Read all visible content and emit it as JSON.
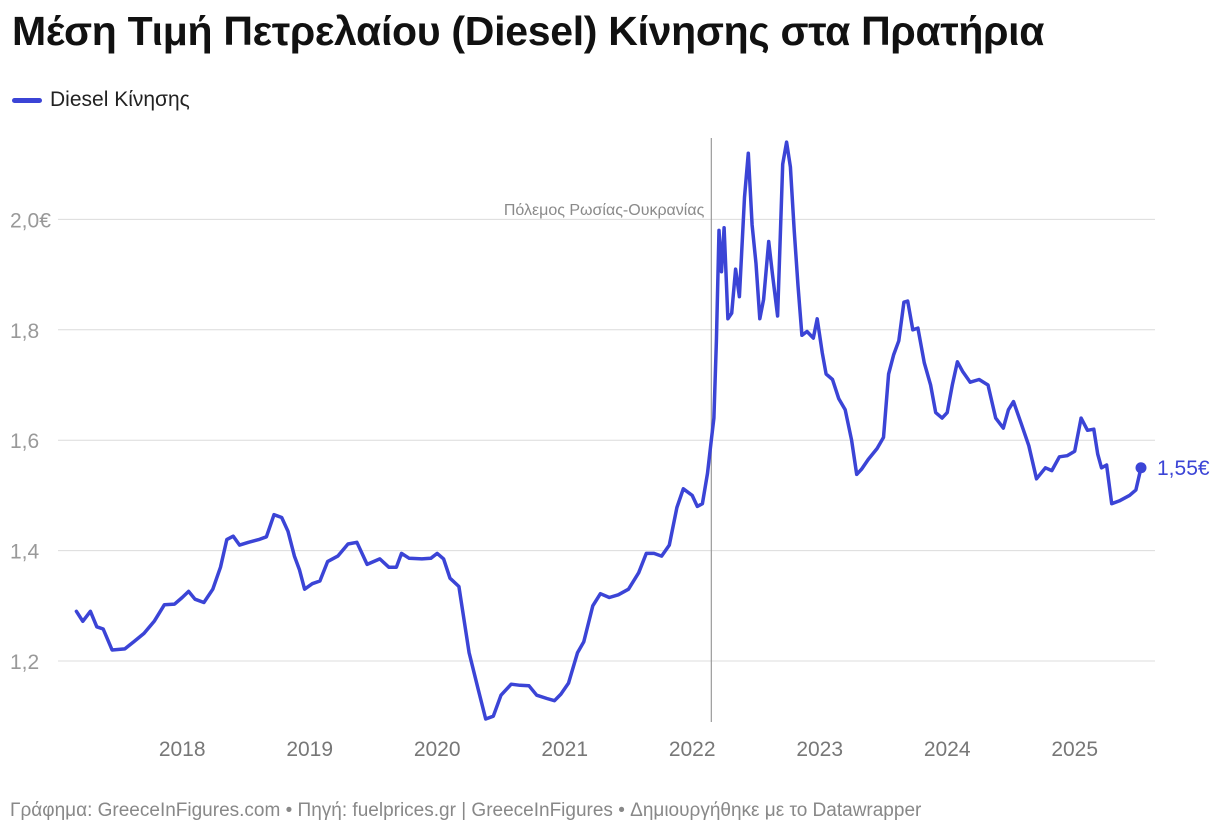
{
  "title": "Μέση Τιμή Πετρελαίου (Diesel) Κίνησης στα Πρατήρια",
  "source": "Γράφημα: GreeceInFigures.com • Πηγή: fuelprices.gr | GreeceInFigures • Δημιουργήθηκε με το Datawrapper",
  "colors": {
    "line": "#3b44d6",
    "grid": "#dcdcdc",
    "axis_text": "#999999",
    "annotation": "#8a8a8a"
  },
  "chart_data": {
    "type": "line",
    "title": "Μέση Τιμή Πετρελαίου (Diesel) Κίνησης στα Πρατήρια",
    "xlabel": "",
    "ylabel": "",
    "x_ticks": [
      "2018",
      "2019",
      "2020",
      "2021",
      "2022",
      "2023",
      "2024",
      "2025"
    ],
    "y_ticks": [
      {
        "value": 1.2,
        "label": "1,2"
      },
      {
        "value": 1.4,
        "label": "1,4"
      },
      {
        "value": 1.6,
        "label": "1,6"
      },
      {
        "value": 1.8,
        "label": "1,8"
      },
      {
        "value": 2.0,
        "label": "2,0€"
      }
    ],
    "ylim": [
      1.09,
      2.15
    ],
    "xlim": [
      2017.2,
      2025.6
    ],
    "grid": true,
    "legend_position": "top-left",
    "annotation": {
      "x": 2022.15,
      "label": "Πόλεμος Ρωσίας-Ουκρανίας"
    },
    "end_label": "1,55€",
    "series": [
      {
        "name": "Diesel Κίνησης",
        "points": [
          [
            2017.17,
            1.29
          ],
          [
            2017.22,
            1.272
          ],
          [
            2017.28,
            1.29
          ],
          [
            2017.33,
            1.262
          ],
          [
            2017.38,
            1.258
          ],
          [
            2017.45,
            1.22
          ],
          [
            2017.55,
            1.222
          ],
          [
            2017.62,
            1.235
          ],
          [
            2017.7,
            1.25
          ],
          [
            2017.78,
            1.272
          ],
          [
            2017.86,
            1.302
          ],
          [
            2017.94,
            1.303
          ],
          [
            2018.0,
            1.315
          ],
          [
            2018.05,
            1.326
          ],
          [
            2018.1,
            1.312
          ],
          [
            2018.17,
            1.306
          ],
          [
            2018.24,
            1.33
          ],
          [
            2018.3,
            1.37
          ],
          [
            2018.35,
            1.42
          ],
          [
            2018.4,
            1.426
          ],
          [
            2018.45,
            1.41
          ],
          [
            2018.52,
            1.415
          ],
          [
            2018.6,
            1.42
          ],
          [
            2018.66,
            1.425
          ],
          [
            2018.72,
            1.465
          ],
          [
            2018.78,
            1.46
          ],
          [
            2018.83,
            1.435
          ],
          [
            2018.88,
            1.39
          ],
          [
            2018.92,
            1.365
          ],
          [
            2018.96,
            1.33
          ],
          [
            2019.02,
            1.34
          ],
          [
            2019.08,
            1.345
          ],
          [
            2019.14,
            1.38
          ],
          [
            2019.22,
            1.39
          ],
          [
            2019.3,
            1.412
          ],
          [
            2019.37,
            1.415
          ],
          [
            2019.45,
            1.375
          ],
          [
            2019.55,
            1.385
          ],
          [
            2019.62,
            1.37
          ],
          [
            2019.68,
            1.37
          ],
          [
            2019.72,
            1.395
          ],
          [
            2019.78,
            1.386
          ],
          [
            2019.88,
            1.385
          ],
          [
            2019.95,
            1.386
          ],
          [
            2020.0,
            1.395
          ],
          [
            2020.05,
            1.385
          ],
          [
            2020.1,
            1.35
          ],
          [
            2020.17,
            1.335
          ],
          [
            2020.25,
            1.215
          ],
          [
            2020.32,
            1.15
          ],
          [
            2020.38,
            1.095
          ],
          [
            2020.44,
            1.1
          ],
          [
            2020.5,
            1.138
          ],
          [
            2020.58,
            1.158
          ],
          [
            2020.65,
            1.156
          ],
          [
            2020.72,
            1.155
          ],
          [
            2020.78,
            1.138
          ],
          [
            2020.86,
            1.132
          ],
          [
            2020.92,
            1.128
          ],
          [
            2020.97,
            1.14
          ],
          [
            2021.03,
            1.16
          ],
          [
            2021.1,
            1.215
          ],
          [
            2021.15,
            1.235
          ],
          [
            2021.22,
            1.3
          ],
          [
            2021.28,
            1.322
          ],
          [
            2021.35,
            1.315
          ],
          [
            2021.42,
            1.32
          ],
          [
            2021.5,
            1.33
          ],
          [
            2021.58,
            1.36
          ],
          [
            2021.64,
            1.395
          ],
          [
            2021.7,
            1.395
          ],
          [
            2021.76,
            1.39
          ],
          [
            2021.82,
            1.41
          ],
          [
            2021.88,
            1.478
          ],
          [
            2021.93,
            1.512
          ],
          [
            2022.0,
            1.5
          ],
          [
            2022.04,
            1.48
          ],
          [
            2022.08,
            1.485
          ],
          [
            2022.12,
            1.54
          ],
          [
            2022.15,
            1.6
          ],
          [
            2022.17,
            1.64
          ],
          [
            2022.19,
            1.78
          ],
          [
            2022.21,
            1.98
          ],
          [
            2022.23,
            1.905
          ],
          [
            2022.25,
            1.985
          ],
          [
            2022.28,
            1.82
          ],
          [
            2022.31,
            1.83
          ],
          [
            2022.34,
            1.91
          ],
          [
            2022.37,
            1.86
          ],
          [
            2022.41,
            2.04
          ],
          [
            2022.44,
            2.12
          ],
          [
            2022.47,
            1.99
          ],
          [
            2022.5,
            1.92
          ],
          [
            2022.53,
            1.82
          ],
          [
            2022.56,
            1.855
          ],
          [
            2022.6,
            1.96
          ],
          [
            2022.63,
            1.9
          ],
          [
            2022.67,
            1.825
          ],
          [
            2022.71,
            2.1
          ],
          [
            2022.74,
            2.14
          ],
          [
            2022.77,
            2.095
          ],
          [
            2022.8,
            1.98
          ],
          [
            2022.83,
            1.88
          ],
          [
            2022.86,
            1.79
          ],
          [
            2022.9,
            1.797
          ],
          [
            2022.95,
            1.785
          ],
          [
            2022.98,
            1.82
          ],
          [
            2023.02,
            1.758
          ],
          [
            2023.05,
            1.72
          ],
          [
            2023.1,
            1.71
          ],
          [
            2023.15,
            1.675
          ],
          [
            2023.2,
            1.655
          ],
          [
            2023.25,
            1.6
          ],
          [
            2023.29,
            1.538
          ],
          [
            2023.33,
            1.548
          ],
          [
            2023.38,
            1.565
          ],
          [
            2023.45,
            1.585
          ],
          [
            2023.5,
            1.605
          ],
          [
            2023.54,
            1.72
          ],
          [
            2023.58,
            1.755
          ],
          [
            2023.62,
            1.78
          ],
          [
            2023.66,
            1.85
          ],
          [
            2023.69,
            1.852
          ],
          [
            2023.73,
            1.8
          ],
          [
            2023.77,
            1.803
          ],
          [
            2023.82,
            1.74
          ],
          [
            2023.87,
            1.7
          ],
          [
            2023.91,
            1.65
          ],
          [
            2023.96,
            1.64
          ],
          [
            2024.0,
            1.65
          ],
          [
            2024.04,
            1.7
          ],
          [
            2024.08,
            1.742
          ],
          [
            2024.12,
            1.725
          ],
          [
            2024.18,
            1.705
          ],
          [
            2024.25,
            1.71
          ],
          [
            2024.32,
            1.7
          ],
          [
            2024.38,
            1.64
          ],
          [
            2024.44,
            1.622
          ],
          [
            2024.48,
            1.655
          ],
          [
            2024.52,
            1.67
          ],
          [
            2024.58,
            1.63
          ],
          [
            2024.64,
            1.59
          ],
          [
            2024.7,
            1.53
          ],
          [
            2024.77,
            1.55
          ],
          [
            2024.82,
            1.545
          ],
          [
            2024.88,
            1.57
          ],
          [
            2024.94,
            1.572
          ],
          [
            2025.0,
            1.58
          ],
          [
            2025.05,
            1.64
          ],
          [
            2025.1,
            1.618
          ],
          [
            2025.15,
            1.62
          ],
          [
            2025.18,
            1.575
          ],
          [
            2025.21,
            1.55
          ],
          [
            2025.25,
            1.555
          ],
          [
            2025.29,
            1.485
          ],
          [
            2025.35,
            1.49
          ],
          [
            2025.43,
            1.5
          ],
          [
            2025.48,
            1.51
          ],
          [
            2025.52,
            1.55
          ]
        ]
      }
    ]
  }
}
